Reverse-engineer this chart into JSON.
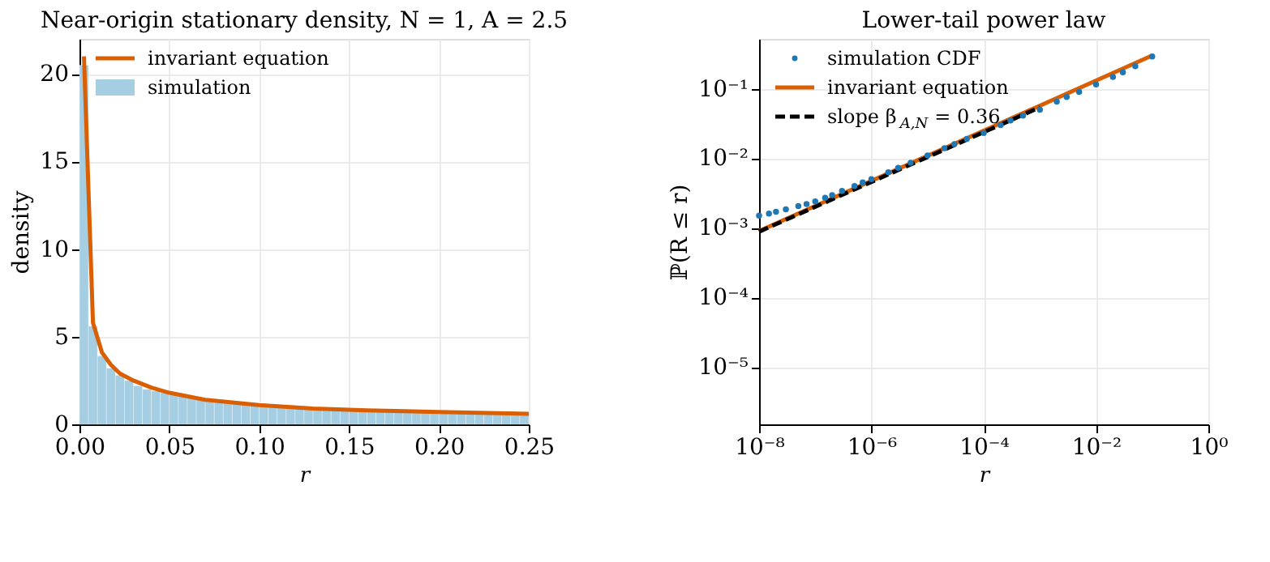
{
  "chart_data": [
    {
      "type": "histogram",
      "title": "Near-origin stationary density, N = 1, A = 2.5",
      "xlabel": "r",
      "ylabel": "density",
      "xlim": [
        0,
        0.25
      ],
      "ylim": [
        0,
        22
      ],
      "xticks": [
        {
          "value": 0,
          "label": "0.00"
        },
        0.05,
        {
          "value": 0.1,
          "label": "0.10"
        },
        0.15,
        {
          "value": 0.2,
          "label": "0.20"
        },
        0.25
      ],
      "yticks": [
        0,
        5,
        10,
        15,
        20
      ],
      "grid": true,
      "legend": "top left",
      "series": [
        {
          "name": "invariant equation",
          "type": "line",
          "color": "#d95f02",
          "x": [
            0.0025,
            0.0075,
            0.0125,
            0.0175,
            0.0225,
            0.03,
            0.04,
            0.05,
            0.07,
            0.1,
            0.13,
            0.16,
            0.2,
            0.25
          ],
          "values": [
            21,
            5.8,
            4.1,
            3.4,
            2.9,
            2.5,
            2.1,
            1.8,
            1.4,
            1.1,
            0.9,
            0.8,
            0.7,
            0.6
          ]
        },
        {
          "name": "simulation",
          "color": "#a6cee3",
          "bins": [
            0,
            0.005,
            0.01,
            0.015,
            0.02,
            0.025,
            0.03,
            0.035,
            0.04,
            0.045,
            0.05,
            0.055,
            0.06,
            0.065,
            0.07,
            0.075,
            0.08,
            0.085,
            0.09,
            0.095,
            0.1,
            0.105,
            0.11,
            0.115,
            0.12,
            0.125,
            0.13,
            0.135,
            0.14,
            0.145,
            0.15,
            0.155,
            0.16,
            0.165,
            0.17,
            0.175,
            0.18,
            0.185,
            0.19,
            0.195,
            0.2,
            0.205,
            0.21,
            0.215,
            0.22,
            0.225,
            0.23,
            0.235,
            0.24,
            0.245,
            0.25
          ],
          "values": [
            20.5,
            5.6,
            3.9,
            3.2,
            2.8,
            2.5,
            2.2,
            2.0,
            1.9,
            1.8,
            1.7,
            1.6,
            1.5,
            1.4,
            1.4,
            1.3,
            1.3,
            1.2,
            1.2,
            1.1,
            1.1,
            1.1,
            1.0,
            1.0,
            1.0,
            0.9,
            0.9,
            0.9,
            0.9,
            0.9,
            0.8,
            0.8,
            0.8,
            0.8,
            0.8,
            0.8,
            0.8,
            0.7,
            0.7,
            0.7,
            0.7,
            0.7,
            0.7,
            0.7,
            0.7,
            0.7,
            0.7,
            0.6,
            0.6,
            0.6
          ]
        }
      ]
    },
    {
      "type": "line",
      "title": "Lower-tail power law",
      "xlabel": "r",
      "ylabel": "ℙ(R ≤ r)",
      "log": "xy",
      "xlim": [
        1e-08,
        1
      ],
      "ylim": [
        1.5e-06,
        0.52
      ],
      "xticks": [
        {
          "value": 1e-08,
          "label": "10⁻⁸"
        },
        {
          "value": 1e-06,
          "label": "10⁻⁶"
        },
        {
          "value": 0.0001,
          "label": "10⁻⁴"
        },
        {
          "value": 0.01,
          "label": "10⁻²"
        },
        {
          "value": 1,
          "label": "10⁰"
        }
      ],
      "yticks": [
        {
          "value": 1e-05,
          "label": "10⁻⁵"
        },
        {
          "value": 0.0001,
          "label": "10⁻⁴"
        },
        {
          "value": 0.001,
          "label": "10⁻³"
        },
        {
          "value": 0.01,
          "label": "10⁻²"
        },
        {
          "value": 0.1,
          "label": "10⁻¹"
        }
      ],
      "grid": true,
      "legend": "top left",
      "series": [
        {
          "name": "simulation CDF",
          "type": "scatter",
          "color": "#1f78b4",
          "x": [
            1e-08,
            1.5e-08,
            2e-08,
            3e-08,
            5e-08,
            7e-08,
            1e-07,
            1.5e-07,
            2e-07,
            3e-07,
            5e-07,
            7e-07,
            1e-06,
            2e-06,
            3e-06,
            5e-06,
            1e-05,
            2e-05,
            3e-05,
            5e-05,
            0.0001,
            0.0002,
            0.0003,
            0.0005,
            0.001,
            0.002,
            0.003,
            0.005,
            0.01,
            0.02,
            0.03,
            0.05,
            0.1
          ],
          "values": [
            0.0015,
            0.0016,
            0.0017,
            0.00185,
            0.00205,
            0.0022,
            0.0024,
            0.0027,
            0.00295,
            0.0034,
            0.004,
            0.0045,
            0.005,
            0.0063,
            0.0073,
            0.0086,
            0.011,
            0.014,
            0.016,
            0.019,
            0.023,
            0.03,
            0.035,
            0.041,
            0.05,
            0.065,
            0.076,
            0.09,
            0.115,
            0.148,
            0.172,
            0.21,
            0.29
          ]
        },
        {
          "name": "invariant equation",
          "color": "#d95f02",
          "x": [
            1e-08,
            0.1
          ],
          "values": [
            0.0009,
            0.3
          ]
        },
        {
          "name": "slope β$_{A,N}$ = 0.36",
          "line_style": "dashed",
          "color": "#000000",
          "x": [
            1e-08,
            0.001
          ],
          "values": [
            0.00088,
            0.054
          ]
        }
      ]
    }
  ]
}
